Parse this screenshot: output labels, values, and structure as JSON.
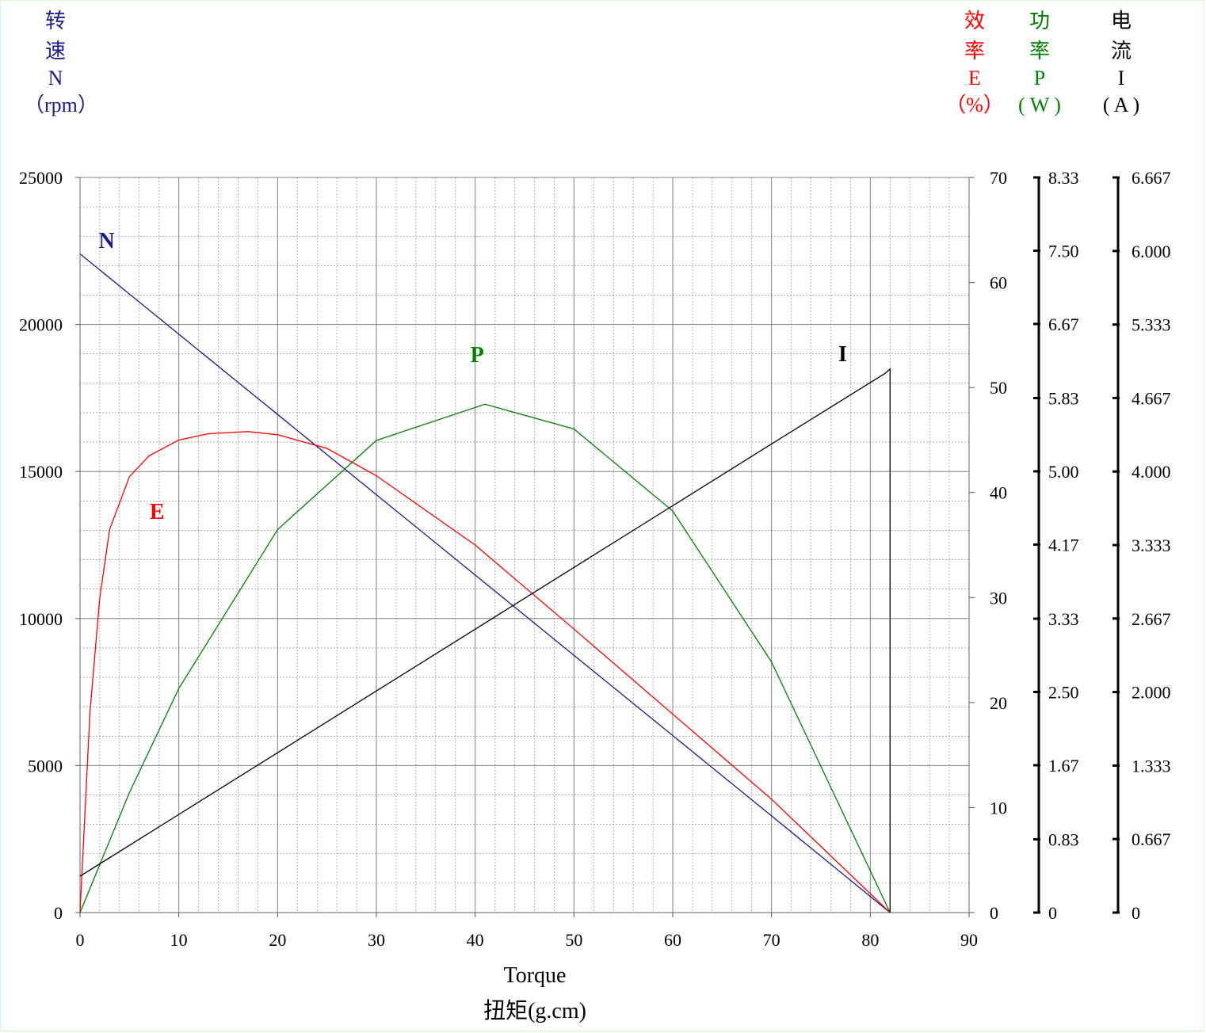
{
  "colors": {
    "speed": "#1a1a8c",
    "efficiency": "#ff0000",
    "power": "#008000",
    "current": "#000000",
    "grid": "#7f7f7f",
    "frame": "#ccffcc"
  },
  "headers": {
    "speed": {
      "line1": "转",
      "line2": "速",
      "line3": "N",
      "line4": "（rpm）"
    },
    "efficiency": {
      "line1": "效",
      "line2": "率",
      "line3": "E",
      "line4": "（%）"
    },
    "power": {
      "line1": "功",
      "line2": "率",
      "line3": "P",
      "line4": "( W )"
    },
    "current": {
      "line1": "电",
      "line2": "流",
      "line3": "I",
      "line4": "( A )"
    }
  },
  "xaxis_title": {
    "line1": "Torque",
    "line2": "扭矩(g.cm)"
  },
  "chart_data": {
    "type": "line",
    "title": "",
    "xlabel": "Torque 扭矩(g.cm)",
    "xlim": [
      0,
      90
    ],
    "xticks": [
      "0",
      "10",
      "20",
      "30",
      "40",
      "50",
      "60",
      "70",
      "80",
      "90"
    ],
    "grid": true,
    "axes": {
      "speed": {
        "label": "转速 N（rpm）",
        "range": [
          0,
          25000
        ],
        "ticks": [
          "0",
          "5000",
          "10000",
          "15000",
          "20000",
          "25000"
        ]
      },
      "efficiency": {
        "label": "效率 E（%）",
        "range": [
          0,
          70
        ],
        "ticks": [
          "0",
          "10",
          "20",
          "30",
          "40",
          "50",
          "60",
          "70"
        ]
      },
      "power": {
        "label": "功率 P( W )",
        "range": [
          0,
          8.33
        ],
        "ticks": [
          "0",
          "0.83",
          "1.67",
          "2.50",
          "3.33",
          "4.17",
          "5.00",
          "5.83",
          "6.67",
          "7.50",
          "8.33"
        ]
      },
      "current": {
        "label": "电流 I( A )",
        "range": [
          0,
          6.667
        ],
        "ticks": [
          "0",
          "0.667",
          "1.333",
          "2.000",
          "2.667",
          "3.333",
          "4.000",
          "4.667",
          "5.333",
          "6.000",
          "6.667"
        ]
      }
    },
    "series": [
      {
        "name": "N",
        "axis": "speed",
        "x": [
          0,
          10,
          20,
          30,
          40,
          50,
          60,
          70,
          82
        ],
        "values": [
          22400,
          19670,
          16940,
          14210,
          11480,
          8750,
          6020,
          3290,
          0
        ]
      },
      {
        "name": "E",
        "axis": "efficiency",
        "x": [
          0,
          1,
          2,
          3,
          5,
          7,
          10,
          13,
          17,
          20,
          25,
          30,
          40,
          50,
          60,
          70,
          82
        ],
        "values": [
          0,
          19,
          30,
          36.5,
          41.5,
          43.5,
          45,
          45.6,
          45.8,
          45.5,
          44.2,
          41.6,
          35,
          27,
          18.9,
          10.8,
          0
        ]
      },
      {
        "name": "P",
        "axis": "power",
        "x": [
          0,
          5,
          10,
          20,
          30,
          41,
          50,
          60,
          70,
          82
        ],
        "values": [
          0,
          1.36,
          2.54,
          4.34,
          5.35,
          5.76,
          5.48,
          4.55,
          2.84,
          0
        ]
      },
      {
        "name": "I",
        "axis": "current",
        "x": [
          0,
          10,
          20,
          30,
          40,
          50,
          60,
          70,
          81.5,
          82,
          82
        ],
        "values": [
          0.33,
          0.89,
          1.45,
          2.01,
          2.57,
          3.13,
          3.69,
          4.25,
          4.89,
          4.93,
          0
        ]
      }
    ]
  }
}
